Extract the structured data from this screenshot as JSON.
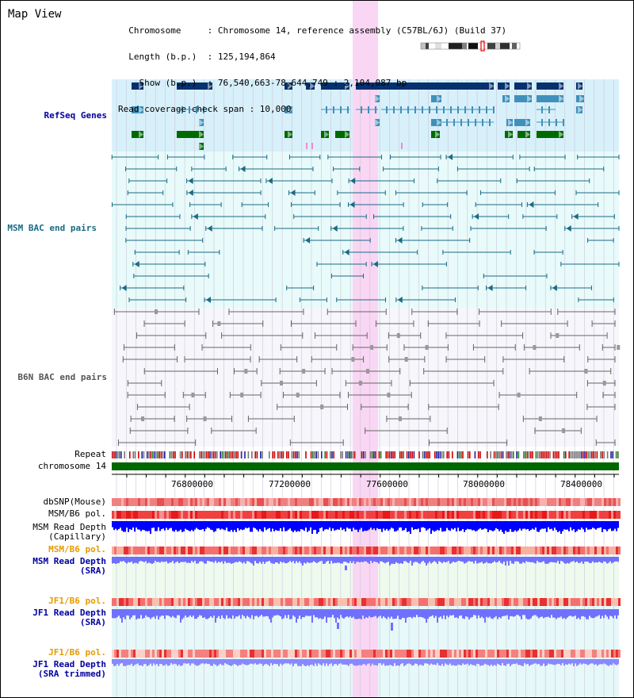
{
  "view": {
    "title": "Map View",
    "info_lines": [
      "  Chromosome     : Chromosome 14, reference assembly (C57BL/6J) (Build 37)",
      "  Length (b.p.)  : 125,194,864",
      "    Show (b.p.)  : 76,540,663-78,644,749 : 2,104,087 bp",
      "Read coverage check span : 10,000"
    ]
  },
  "tracks": {
    "refseq": "RefSeq Genes",
    "msm_bac": "MSM BAC end pairs",
    "b6n_bac": "B6N BAC end pairs",
    "repeat": "Repeat",
    "chromosome": "chromosome 14",
    "dbsnp": "dbSNP(Mouse)",
    "msm_b6_pol": "MSM/B6 pol.",
    "msm_depth_cap": "MSM Read Depth\n(Capillary)",
    "msm_b6_pol2": "MSM/B6 pol.",
    "msm_depth_sra": "MSM Read Depth\n(SRA)",
    "jf1_b6_pol": "JF1/B6 pol.",
    "jf1_depth_sra": "JF1 Read Depth\n(SRA)",
    "jf1_b6_pol2": "JF1/B6 pol.",
    "jf1_depth_trim": "JF1 Read Depth\n(SRA trimmed)"
  },
  "axis": {
    "ticks": [
      "76800000",
      "77200000",
      "77600000",
      "78000000",
      "78400000"
    ]
  },
  "colors": {
    "refseq_bg": "#d8f0fa",
    "bac_bg": "#e8fafa",
    "highlight": "#f9d6f3",
    "gene_dark": "#06306e",
    "gene_mid": "#4090bb",
    "gene_green": "#006a00",
    "msm_feature": "#1a6a84",
    "b6n_feature": "#666666",
    "label_blue": "#0000a0",
    "label_orange": "#e69a00",
    "depth_dark": "#0000ff",
    "depth_light": "#7070ff"
  }
}
